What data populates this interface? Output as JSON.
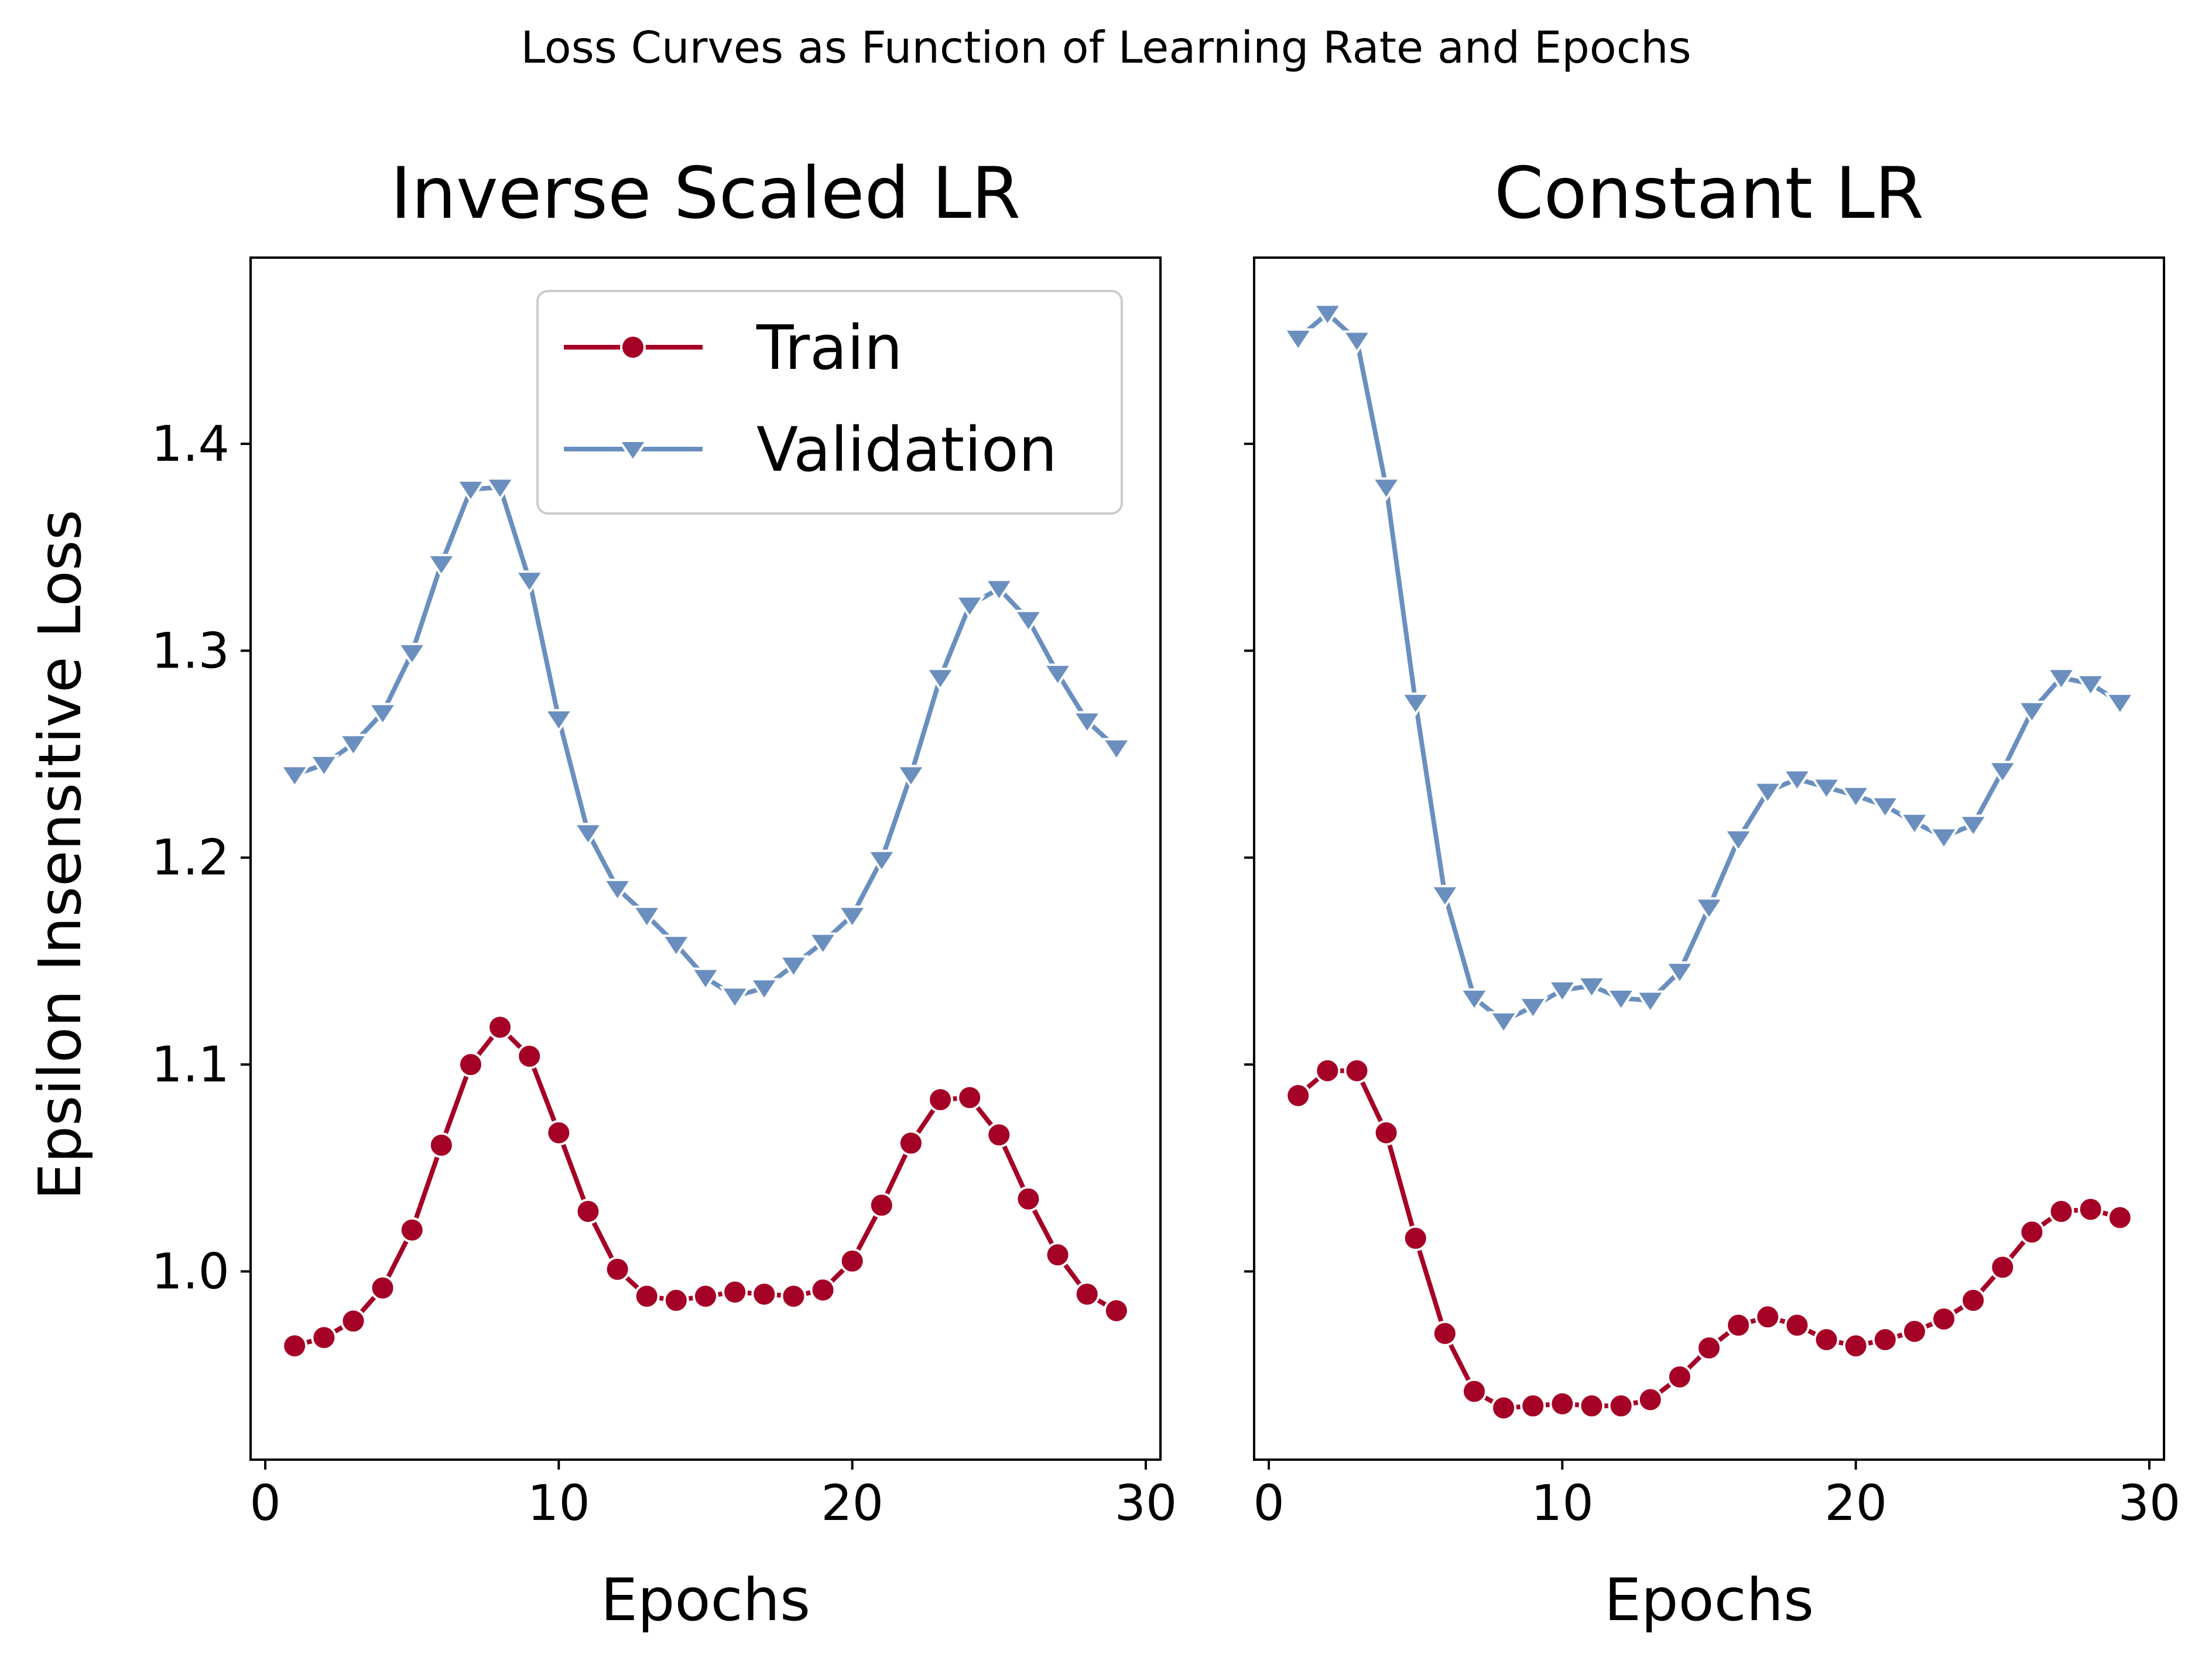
{
  "figure": {
    "suptitle": "Loss Curves as Function of Learning Rate and Epochs"
  },
  "legend": {
    "placement": "upper-right",
    "entries": [
      {
        "label": "Train",
        "color": "#a50026",
        "marker": "circle"
      },
      {
        "label": "Validation",
        "color": "#6a8fbf",
        "marker": "triangle-down"
      }
    ]
  },
  "chart_data": [
    {
      "type": "line",
      "title": "Inverse Scaled LR",
      "xlabel": "Epochs",
      "ylabel": "Epsilon Insensitive Loss",
      "xlim": [
        -0.5,
        30.5
      ],
      "ylim": [
        0.909,
        1.49
      ],
      "xticks": [
        0,
        10,
        20,
        30
      ],
      "yticks": [
        1.0,
        1.1,
        1.2,
        1.3,
        1.4
      ],
      "grid": false,
      "legend": "upper-right",
      "x": [
        1,
        2,
        3,
        4,
        5,
        6,
        7,
        8,
        9,
        10,
        11,
        12,
        13,
        14,
        15,
        16,
        17,
        18,
        19,
        20,
        21,
        22,
        23,
        24,
        25,
        26,
        27,
        28,
        29
      ],
      "series": [
        {
          "name": "Train",
          "color": "#a50026",
          "marker": "circle",
          "values": [
            0.964,
            0.968,
            0.976,
            0.992,
            1.02,
            1.061,
            1.1,
            1.118,
            1.104,
            1.067,
            1.029,
            1.001,
            0.988,
            0.986,
            0.988,
            0.99,
            0.989,
            0.988,
            0.991,
            1.005,
            1.032,
            1.062,
            1.083,
            1.084,
            1.066,
            1.035,
            1.008,
            0.989,
            0.981
          ]
        },
        {
          "name": "Validation",
          "color": "#6a8fbf",
          "marker": "triangle-down",
          "values": [
            1.24,
            1.245,
            1.255,
            1.27,
            1.299,
            1.342,
            1.378,
            1.379,
            1.334,
            1.267,
            1.212,
            1.185,
            1.172,
            1.158,
            1.142,
            1.133,
            1.137,
            1.148,
            1.159,
            1.172,
            1.199,
            1.24,
            1.287,
            1.322,
            1.33,
            1.315,
            1.289,
            1.266,
            1.253
          ]
        }
      ]
    },
    {
      "type": "line",
      "title": "Constant LR",
      "xlabel": "Epochs",
      "ylabel": "",
      "xlim": [
        -0.5,
        30.5
      ],
      "ylim": [
        0.909,
        1.49
      ],
      "xticks": [
        0,
        10,
        20,
        30
      ],
      "yticks": [
        1.0,
        1.1,
        1.2,
        1.3,
        1.4
      ],
      "show_ytick_labels": false,
      "grid": false,
      "x": [
        1,
        2,
        3,
        4,
        5,
        6,
        7,
        8,
        9,
        10,
        11,
        12,
        13,
        14,
        15,
        16,
        17,
        18,
        19,
        20,
        21,
        22,
        23,
        24,
        25,
        26,
        27,
        28,
        29
      ],
      "series": [
        {
          "name": "Train",
          "color": "#a50026",
          "marker": "circle",
          "values": [
            1.085,
            1.097,
            1.097,
            1.067,
            1.016,
            0.97,
            0.942,
            0.934,
            0.935,
            0.936,
            0.935,
            0.935,
            0.938,
            0.949,
            0.963,
            0.974,
            0.978,
            0.974,
            0.967,
            0.964,
            0.967,
            0.971,
            0.977,
            0.986,
            1.002,
            1.019,
            1.029,
            1.03,
            1.026
          ]
        },
        {
          "name": "Validation",
          "color": "#6a8fbf",
          "marker": "triangle-down",
          "values": [
            1.451,
            1.463,
            1.45,
            1.379,
            1.275,
            1.182,
            1.132,
            1.121,
            1.128,
            1.136,
            1.138,
            1.132,
            1.131,
            1.145,
            1.176,
            1.209,
            1.232,
            1.238,
            1.234,
            1.23,
            1.225,
            1.217,
            1.21,
            1.216,
            1.242,
            1.271,
            1.287,
            1.284,
            1.275
          ]
        }
      ]
    }
  ]
}
